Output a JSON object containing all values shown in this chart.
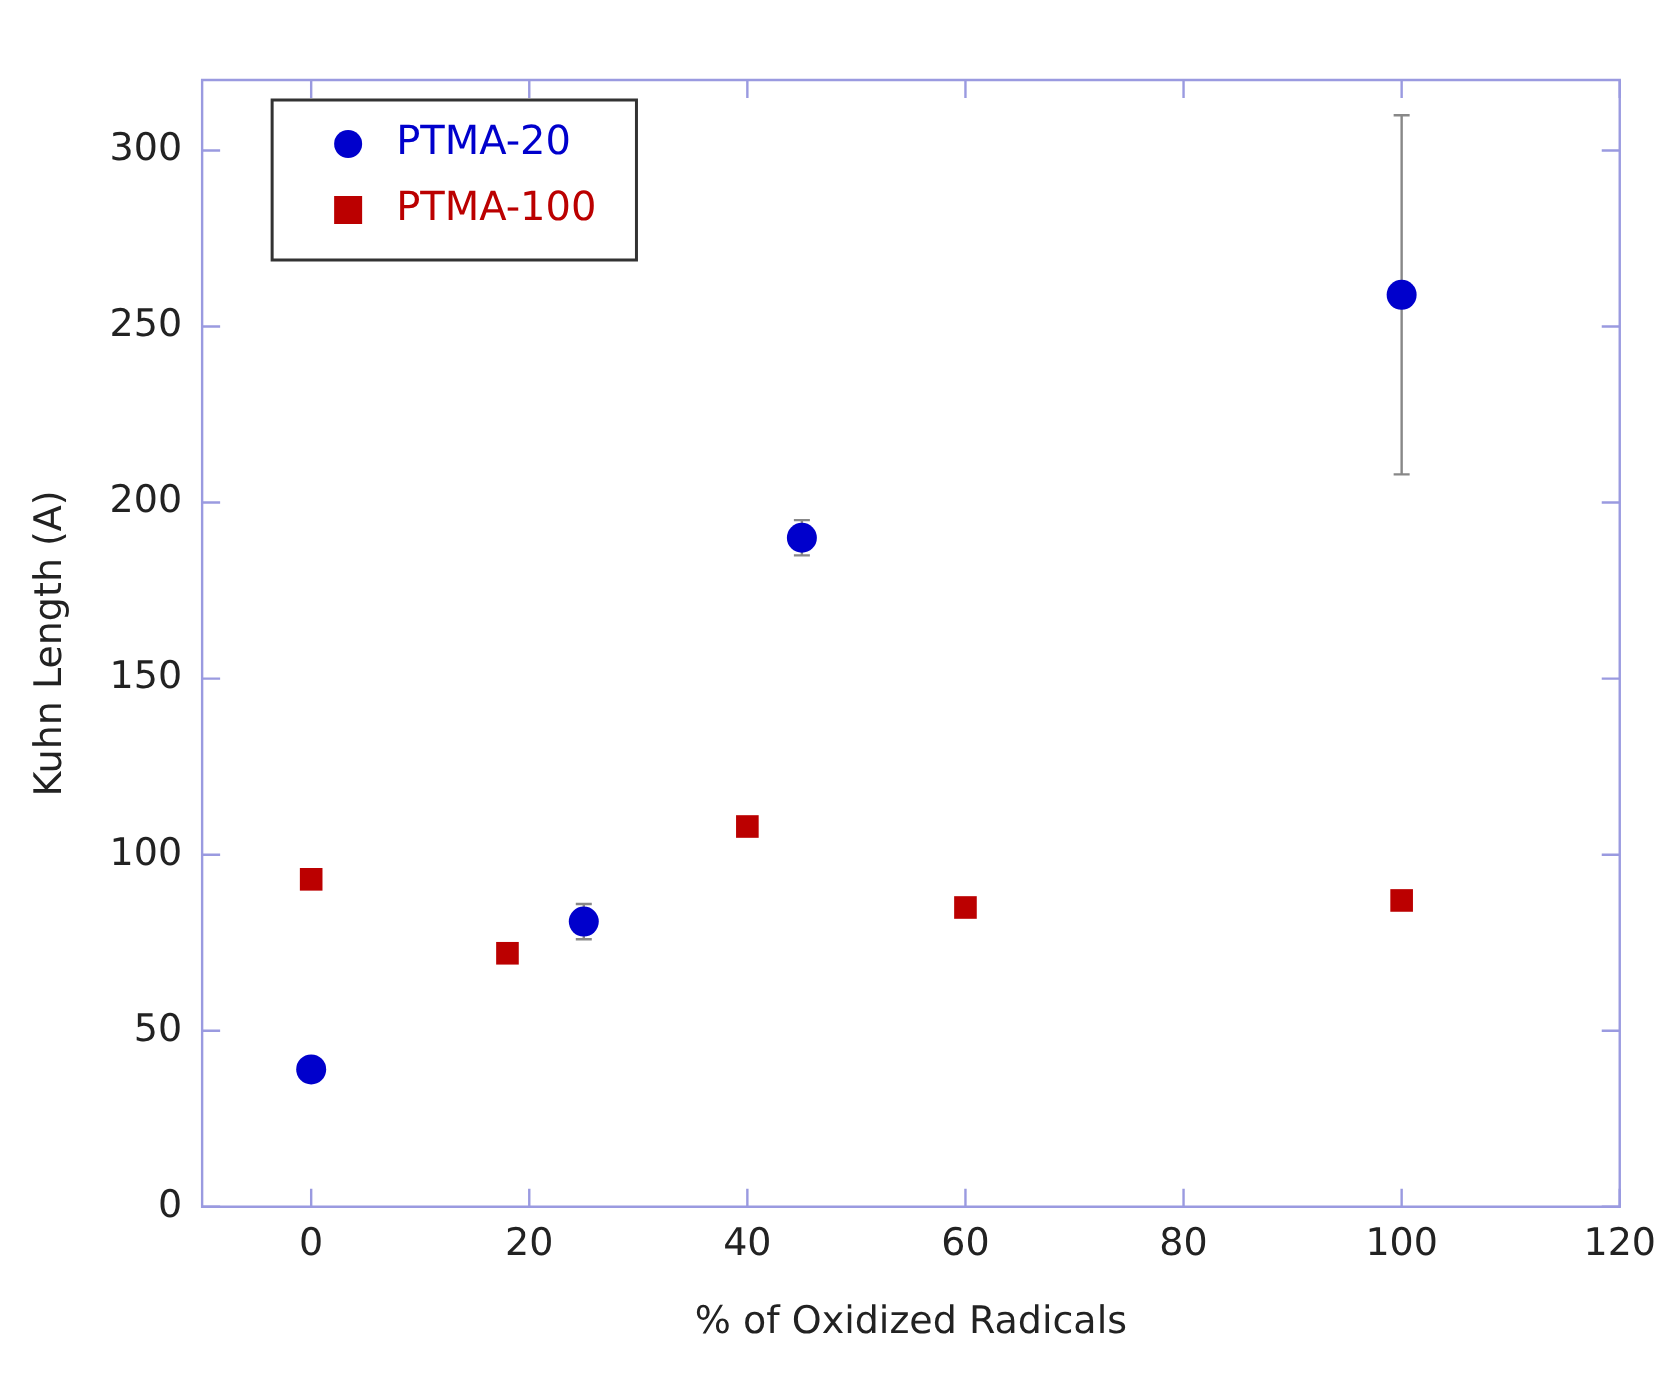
{
  "chart_data": {
    "type": "scatter",
    "xlabel": "% of Oxidized Radicals",
    "ylabel": "Kuhn Length (A)",
    "xlim": [
      -10,
      120
    ],
    "xticks": [
      0,
      20,
      40,
      60,
      80,
      100,
      120
    ],
    "ylim": [
      0,
      320
    ],
    "yticks": [
      0,
      50,
      100,
      150,
      200,
      250,
      300
    ],
    "grid": false,
    "legend": "top left",
    "series": [
      {
        "name": "PTMA-20",
        "color": "#0000cc",
        "marker": "circle",
        "x": [
          0,
          25,
          45,
          100
        ],
        "values": [
          39,
          81,
          190,
          259
        ],
        "errors": [
          null,
          5,
          5,
          51
        ]
      },
      {
        "name": "PTMA-100",
        "color": "#bb0000",
        "marker": "square",
        "x": [
          0,
          18,
          40,
          60,
          100
        ],
        "values": [
          93,
          72,
          108,
          85,
          87
        ]
      }
    ]
  }
}
